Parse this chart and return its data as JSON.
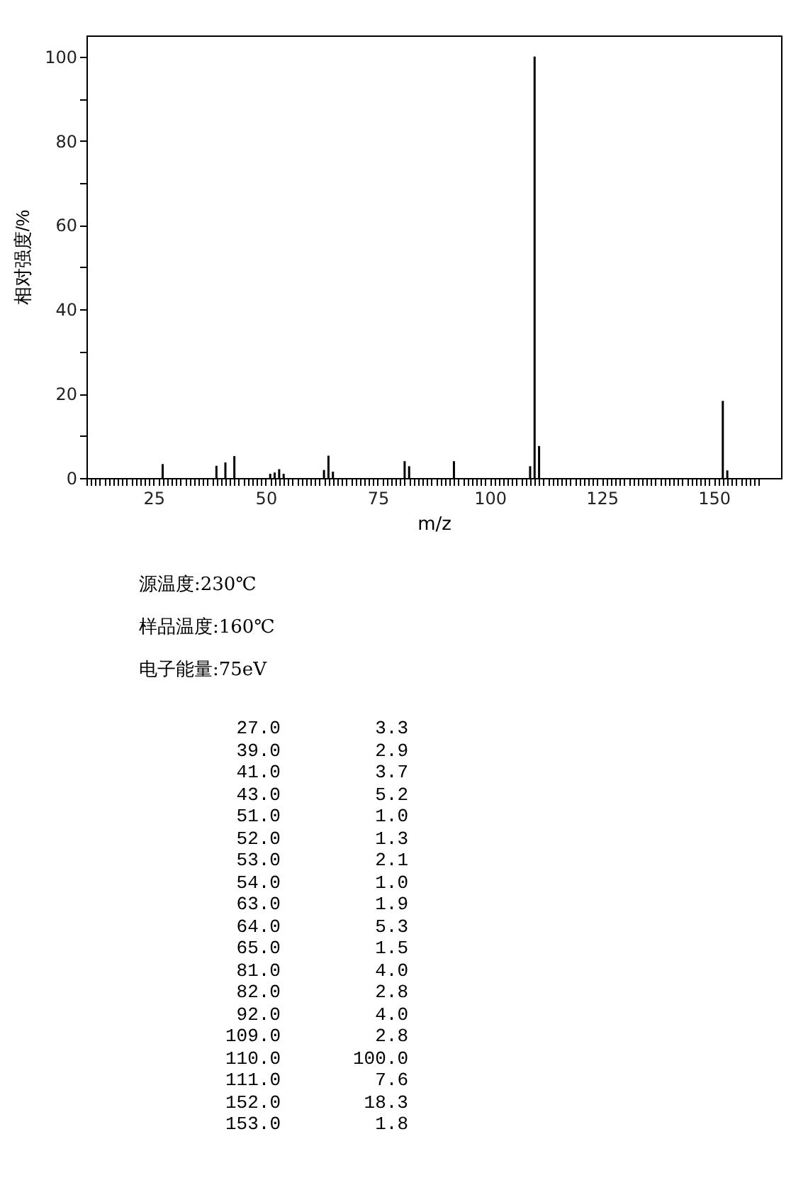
{
  "chart_data": [
    {
      "type": "bar",
      "xlabel": "m/z",
      "ylabel": "相对强度/%",
      "x": [
        27,
        39,
        41,
        43,
        51,
        52,
        53,
        54,
        63,
        64,
        65,
        81,
        82,
        92,
        109,
        110,
        111,
        152,
        153
      ],
      "series": [
        {
          "color": "#000000",
          "values": [
            3.3,
            2.9,
            3.7,
            5.2,
            1.0,
            1.3,
            2.1,
            1.0,
            1.9,
            5.3,
            1.5,
            4.0,
            2.8,
            4.0,
            2.8,
            100.0,
            7.6,
            18.3,
            1.8
          ]
        }
      ],
      "xlim": [
        10,
        165
      ],
      "ylim": [
        0,
        105
      ],
      "yticks": [
        0,
        {
          "value": 10,
          "label": null
        },
        20,
        {
          "value": 30,
          "label": null
        },
        40,
        {
          "value": 50,
          "label": null
        },
        60,
        {
          "value": 70,
          "label": null
        },
        80,
        {
          "value": 90,
          "label": null
        },
        100
      ],
      "xticks": [
        {
          "value": 10,
          "label": null
        },
        {
          "value": 11,
          "label": null
        },
        {
          "value": 12,
          "label": null
        },
        {
          "value": 13,
          "label": null
        },
        {
          "value": 14,
          "label": null
        },
        {
          "value": 15,
          "label": null
        },
        {
          "value": 16,
          "label": null
        },
        {
          "value": 17,
          "label": null
        },
        {
          "value": 18,
          "label": null
        },
        {
          "value": 19,
          "label": null
        },
        {
          "value": 20,
          "label": null
        },
        {
          "value": 21,
          "label": null
        },
        {
          "value": 22,
          "label": null
        },
        {
          "value": 23,
          "label": null
        },
        {
          "value": 24,
          "label": null
        },
        25,
        {
          "value": 26,
          "label": null
        },
        {
          "value": 27,
          "label": null
        },
        {
          "value": 28,
          "label": null
        },
        {
          "value": 29,
          "label": null
        },
        {
          "value": 30,
          "label": null
        },
        {
          "value": 31,
          "label": null
        },
        {
          "value": 32,
          "label": null
        },
        {
          "value": 33,
          "label": null
        },
        {
          "value": 34,
          "label": null
        },
        {
          "value": 35,
          "label": null
        },
        {
          "value": 36,
          "label": null
        },
        {
          "value": 37,
          "label": null
        },
        {
          "value": 38,
          "label": null
        },
        {
          "value": 39,
          "label": null
        },
        {
          "value": 40,
          "label": null
        },
        {
          "value": 41,
          "label": null
        },
        {
          "value": 42,
          "label": null
        },
        {
          "value": 43,
          "label": null
        },
        {
          "value": 44,
          "label": null
        },
        {
          "value": 45,
          "label": null
        },
        {
          "value": 46,
          "label": null
        },
        {
          "value": 47,
          "label": null
        },
        {
          "value": 48,
          "label": null
        },
        {
          "value": 49,
          "label": null
        },
        50,
        {
          "value": 51,
          "label": null
        },
        {
          "value": 52,
          "label": null
        },
        {
          "value": 53,
          "label": null
        },
        {
          "value": 54,
          "label": null
        },
        {
          "value": 55,
          "label": null
        },
        {
          "value": 56,
          "label": null
        },
        {
          "value": 57,
          "label": null
        },
        {
          "value": 58,
          "label": null
        },
        {
          "value": 59,
          "label": null
        },
        {
          "value": 60,
          "label": null
        },
        {
          "value": 61,
          "label": null
        },
        {
          "value": 62,
          "label": null
        },
        {
          "value": 63,
          "label": null
        },
        {
          "value": 64,
          "label": null
        },
        {
          "value": 65,
          "label": null
        },
        {
          "value": 66,
          "label": null
        },
        {
          "value": 67,
          "label": null
        },
        {
          "value": 68,
          "label": null
        },
        {
          "value": 69,
          "label": null
        },
        {
          "value": 70,
          "label": null
        },
        {
          "value": 71,
          "label": null
        },
        {
          "value": 72,
          "label": null
        },
        {
          "value": 73,
          "label": null
        },
        {
          "value": 74,
          "label": null
        },
        75,
        {
          "value": 76,
          "label": null
        },
        {
          "value": 77,
          "label": null
        },
        {
          "value": 78,
          "label": null
        },
        {
          "value": 79,
          "label": null
        },
        {
          "value": 80,
          "label": null
        },
        {
          "value": 81,
          "label": null
        },
        {
          "value": 82,
          "label": null
        },
        {
          "value": 83,
          "label": null
        },
        {
          "value": 84,
          "label": null
        },
        {
          "value": 85,
          "label": null
        },
        {
          "value": 86,
          "label": null
        },
        {
          "value": 87,
          "label": null
        },
        {
          "value": 88,
          "label": null
        },
        {
          "value": 89,
          "label": null
        },
        {
          "value": 90,
          "label": null
        },
        {
          "value": 91,
          "label": null
        },
        {
          "value": 92,
          "label": null
        },
        {
          "value": 93,
          "label": null
        },
        {
          "value": 94,
          "label": null
        },
        {
          "value": 95,
          "label": null
        },
        {
          "value": 96,
          "label": null
        },
        {
          "value": 97,
          "label": null
        },
        {
          "value": 98,
          "label": null
        },
        {
          "value": 99,
          "label": null
        },
        100,
        {
          "value": 101,
          "label": null
        },
        {
          "value": 102,
          "label": null
        },
        {
          "value": 103,
          "label": null
        },
        {
          "value": 104,
          "label": null
        },
        {
          "value": 105,
          "label": null
        },
        {
          "value": 106,
          "label": null
        },
        {
          "value": 107,
          "label": null
        },
        {
          "value": 108,
          "label": null
        },
        {
          "value": 109,
          "label": null
        },
        {
          "value": 110,
          "label": null
        },
        {
          "value": 111,
          "label": null
        },
        {
          "value": 112,
          "label": null
        },
        {
          "value": 113,
          "label": null
        },
        {
          "value": 114,
          "label": null
        },
        {
          "value": 115,
          "label": null
        },
        {
          "value": 116,
          "label": null
        },
        {
          "value": 117,
          "label": null
        },
        {
          "value": 118,
          "label": null
        },
        {
          "value": 119,
          "label": null
        },
        {
          "value": 120,
          "label": null
        },
        {
          "value": 121,
          "label": null
        },
        {
          "value": 122,
          "label": null
        },
        {
          "value": 123,
          "label": null
        },
        {
          "value": 124,
          "label": null
        },
        125,
        {
          "value": 126,
          "label": null
        },
        {
          "value": 127,
          "label": null
        },
        {
          "value": 128,
          "label": null
        },
        {
          "value": 129,
          "label": null
        },
        {
          "value": 130,
          "label": null
        },
        {
          "value": 131,
          "label": null
        },
        {
          "value": 132,
          "label": null
        },
        {
          "value": 133,
          "label": null
        },
        {
          "value": 134,
          "label": null
        },
        {
          "value": 135,
          "label": null
        },
        {
          "value": 136,
          "label": null
        },
        {
          "value": 137,
          "label": null
        },
        {
          "value": 138,
          "label": null
        },
        {
          "value": 139,
          "label": null
        },
        {
          "value": 140,
          "label": null
        },
        {
          "value": 141,
          "label": null
        },
        {
          "value": 142,
          "label": null
        },
        {
          "value": 143,
          "label": null
        },
        {
          "value": 144,
          "label": null
        },
        {
          "value": 145,
          "label": null
        },
        {
          "value": 146,
          "label": null
        },
        {
          "value": 147,
          "label": null
        },
        {
          "value": 148,
          "label": null
        },
        {
          "value": 149,
          "label": null
        },
        150,
        {
          "value": 151,
          "label": null
        },
        {
          "value": 152,
          "label": null
        },
        {
          "value": 153,
          "label": null
        },
        {
          "value": 154,
          "label": null
        },
        {
          "value": 155,
          "label": null
        },
        {
          "value": 156,
          "label": null
        },
        {
          "value": 157,
          "label": null
        },
        {
          "value": 158,
          "label": null
        },
        {
          "value": 159,
          "label": null
        },
        {
          "value": 160,
          "label": null
        }
      ],
      "annotations": [
        "源温度:230℃",
        "样品温度:160℃",
        "电子能量:75eV"
      ]
    },
    {
      "type": "other",
      "annotations": [
        "27.0",
        "3.3",
        "39.0",
        "2.9",
        "41.0",
        "3.7",
        "43.0",
        "5.2",
        "51.0",
        "1.0",
        "52.0",
        "1.3",
        "53.0",
        "2.1",
        "54.0",
        "1.0",
        "63.0",
        "1.9",
        "64.0",
        "5.3",
        "65.0",
        "1.5",
        "81.0",
        "4.0",
        "82.0",
        "2.8",
        "92.0",
        "4.0",
        "109.0",
        "2.8",
        "110.0",
        "100.0",
        "111.0",
        "7.6",
        "152.0",
        "18.3",
        "153.0",
        "1.8"
      ]
    }
  ]
}
